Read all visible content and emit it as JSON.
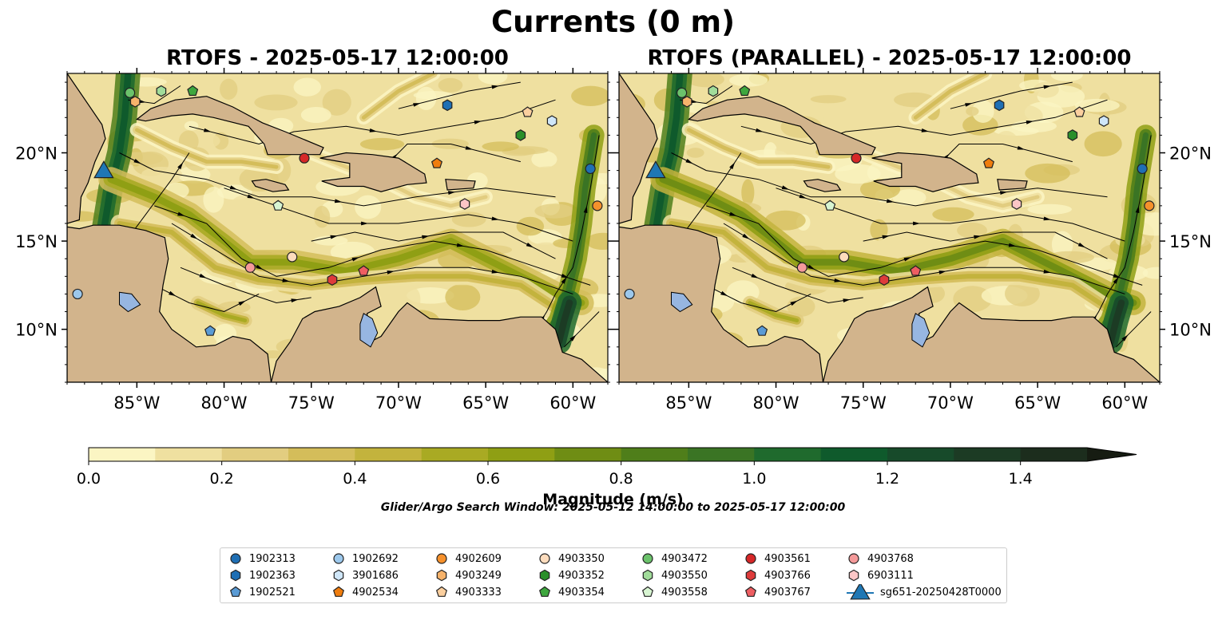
{
  "title": "Currents (0 m)",
  "panels": [
    {
      "title": "RTOFS - 2025-05-17 12:00:00"
    },
    {
      "title": "RTOFS (PARALLEL) - 2025-05-17 12:00:00"
    }
  ],
  "colorbar": {
    "label": "Magnitude (m/s)",
    "ticks": [
      "0.0",
      "0.2",
      "0.4",
      "0.6",
      "0.8",
      "1.0",
      "1.2",
      "1.4"
    ],
    "colors": [
      "#fbf5c3",
      "#efe0a0",
      "#e2cd80",
      "#d4bd5a",
      "#c3b33d",
      "#a9aa23",
      "#8f9f14",
      "#6f8d14",
      "#4f7e1a",
      "#3a7424",
      "#1f6a2d",
      "#0f5a2c",
      "#174a2a",
      "#1c3b24",
      "#1c2d1d",
      "#161c12"
    ]
  },
  "search_window": "Glider/Argo Search Window: 2025-05-12 14:00:00 to 2025-05-17 12:00:00",
  "legend": [
    {
      "label": "1902313",
      "marker": "circle",
      "color": "#1f6fb4"
    },
    {
      "label": "1902363",
      "marker": "hexagon",
      "color": "#1f6fb4"
    },
    {
      "label": "1902521",
      "marker": "pentagon",
      "color": "#5a9bd5"
    },
    {
      "label": "1902692",
      "marker": "circle",
      "color": "#9cc8ec"
    },
    {
      "label": "3901686",
      "marker": "hexagon",
      "color": "#cfe6f8"
    },
    {
      "label": "4902534",
      "marker": "pentagon",
      "color": "#ef7d0e"
    },
    {
      "label": "4902609",
      "marker": "circle",
      "color": "#f6912c"
    },
    {
      "label": "4903249",
      "marker": "hexagon",
      "color": "#f7b36b"
    },
    {
      "label": "4903333",
      "marker": "pentagon",
      "color": "#fbcf9e"
    },
    {
      "label": "4903350",
      "marker": "circle",
      "color": "#fddcbd"
    },
    {
      "label": "4903352",
      "marker": "hexagon",
      "color": "#2a8f2a"
    },
    {
      "label": "4903354",
      "marker": "pentagon",
      "color": "#3ea73e"
    },
    {
      "label": "4903472",
      "marker": "circle",
      "color": "#6bc26b"
    },
    {
      "label": "4903550",
      "marker": "hexagon",
      "color": "#a1dc9a"
    },
    {
      "label": "4903558",
      "marker": "pentagon",
      "color": "#d8f5d2"
    },
    {
      "label": "4903561",
      "marker": "circle",
      "color": "#d62728"
    },
    {
      "label": "4903766",
      "marker": "hexagon",
      "color": "#de3b3b"
    },
    {
      "label": "4903767",
      "marker": "pentagon",
      "color": "#ee5e62"
    },
    {
      "label": "4903768",
      "marker": "circle",
      "color": "#f59a9a"
    },
    {
      "label": "6903111",
      "marker": "hexagon",
      "color": "#fcc6c6"
    },
    {
      "label": "sg651-20250428T0000",
      "marker": "triangle",
      "color": "#1f77b4"
    }
  ],
  "chart_data": {
    "type": "map",
    "variable": "Ocean surface current magnitude (m/s)",
    "extent": {
      "lon": [
        -89.0,
        -58.0
      ],
      "lat": [
        7.0,
        24.5
      ]
    },
    "x_ticks": [
      "85°W",
      "80°W",
      "75°W",
      "70°W",
      "65°W",
      "60°W"
    ],
    "y_ticks": [
      "10°N",
      "15°N",
      "20°N"
    ],
    "x_tick_values": [
      -85,
      -80,
      -75,
      -70,
      -65,
      -60
    ],
    "y_tick_values": [
      10,
      15,
      20
    ],
    "colorbar_range": [
      0.0,
      1.5
    ],
    "platforms": [
      {
        "id": "1902313",
        "lon": -59.0,
        "lat": 19.1
      },
      {
        "id": "1902363",
        "lon": -67.2,
        "lat": 22.7
      },
      {
        "id": "1902521",
        "lon": -80.8,
        "lat": 9.9
      },
      {
        "id": "1902692",
        "lon": -88.4,
        "lat": 12.0
      },
      {
        "id": "3901686",
        "lon": -61.2,
        "lat": 21.8
      },
      {
        "id": "4902534",
        "lon": -67.8,
        "lat": 19.4
      },
      {
        "id": "4902609",
        "lon": -58.6,
        "lat": 17.0
      },
      {
        "id": "4903249",
        "lon": -85.1,
        "lat": 22.9
      },
      {
        "id": "4903333",
        "lon": -62.6,
        "lat": 22.3
      },
      {
        "id": "4903350",
        "lon": -76.1,
        "lat": 14.1
      },
      {
        "id": "4903352",
        "lon": -63.0,
        "lat": 21.0
      },
      {
        "id": "4903354",
        "lon": -81.8,
        "lat": 23.5
      },
      {
        "id": "4903472",
        "lon": -85.4,
        "lat": 23.4
      },
      {
        "id": "4903550",
        "lon": -83.6,
        "lat": 23.5
      },
      {
        "id": "4903558",
        "lon": -76.9,
        "lat": 17.0
      },
      {
        "id": "4903561",
        "lon": -75.4,
        "lat": 19.7
      },
      {
        "id": "4903766",
        "lon": -73.8,
        "lat": 12.8
      },
      {
        "id": "4903767",
        "lon": -72.0,
        "lat": 13.3
      },
      {
        "id": "4903768",
        "lon": -78.5,
        "lat": 13.5
      },
      {
        "id": "6903111",
        "lon": -66.2,
        "lat": 17.1
      },
      {
        "id": "sg651-20250428T0000",
        "lon": -86.9,
        "lat": 18.9
      }
    ]
  }
}
